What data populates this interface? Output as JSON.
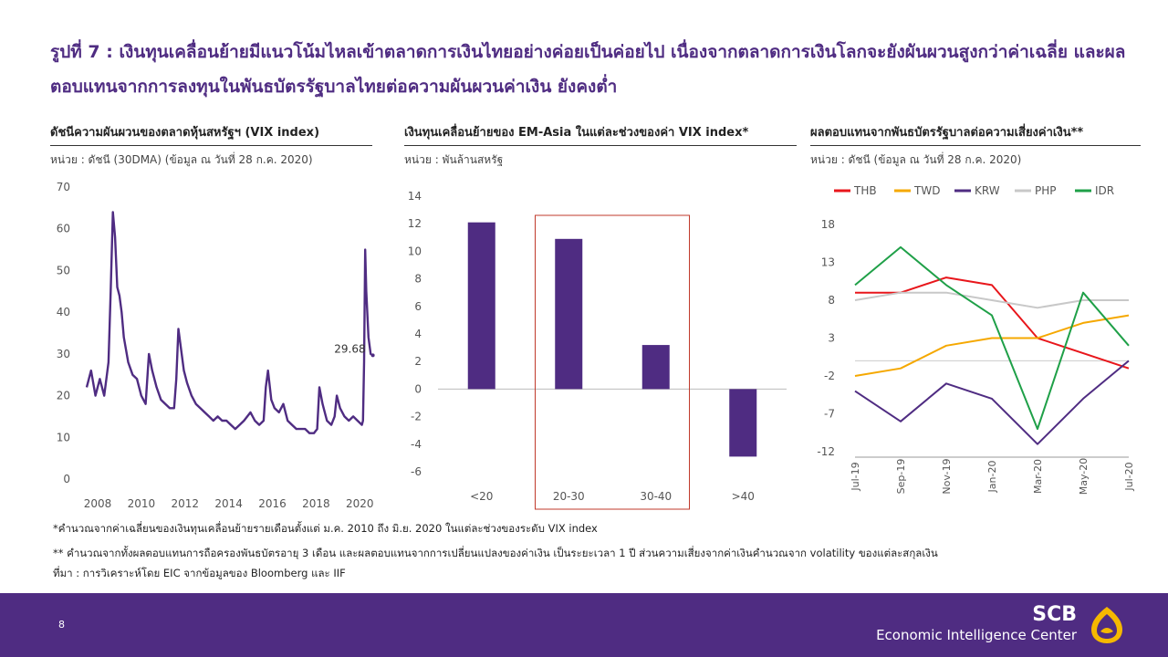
{
  "title": "รูปที่ 7 : เงินทุนเคลื่อนย้ายมีแนวโน้มไหลเข้าตลาดการเงินไทยอย่างค่อยเป็นค่อยไป เนื่องจากตลาดการเงินโลกจะยังผันผวนสูงกว่าค่าเฉลี่ย และผลตอบแทนจากการลงทุนในพันธบัตรรัฐบาลไทยต่อความผันผวนค่าเงิน ยังคงต่ำ",
  "panels": {
    "vix": {
      "title": "ดัชนีความผันผวนของตลาดหุ้นสหรัฐฯ (VIX index)",
      "unit": "หน่วย : ดัชนี (30DMA) (ข้อมูล ณ วันที่ 28 ก.ค. 2020)"
    },
    "flows": {
      "title": "เงินทุนเคลื่อนย้ายของ EM-Asia ในแต่ละช่วงของค่า VIX index*",
      "unit": "หน่วย : พันล้านสหรัฐ"
    },
    "risk": {
      "title": "ผลตอบแทนจากพันธบัตรรัฐบาลต่อความเสี่ยงค่าเงิน**",
      "unit": "หน่วย : ดัชนี (ข้อมูล ณ วันที่ 28 ก.ค. 2020)"
    }
  },
  "chart_data": [
    {
      "type": "line",
      "series": [
        {
          "color": "#4f2c82"
        }
      ],
      "x": [
        2007.5,
        2007.7,
        2007.9,
        2008.1,
        2008.3,
        2008.5,
        2008.6,
        2008.7,
        2008.8,
        2008.9,
        2009.0,
        2009.1,
        2009.2,
        2009.4,
        2009.6,
        2009.8,
        2010.0,
        2010.2,
        2010.35,
        2010.5,
        2010.7,
        2010.9,
        2011.1,
        2011.3,
        2011.5,
        2011.6,
        2011.7,
        2011.8,
        2011.95,
        2012.1,
        2012.3,
        2012.5,
        2012.7,
        2012.9,
        2013.1,
        2013.3,
        2013.5,
        2013.7,
        2013.9,
        2014.1,
        2014.3,
        2014.5,
        2014.7,
        2014.85,
        2015.0,
        2015.2,
        2015.4,
        2015.6,
        2015.7,
        2015.8,
        2015.95,
        2016.1,
        2016.3,
        2016.5,
        2016.7,
        2016.9,
        2017.1,
        2017.3,
        2017.5,
        2017.7,
        2017.9,
        2018.05,
        2018.15,
        2018.3,
        2018.5,
        2018.7,
        2018.85,
        2018.95,
        2019.1,
        2019.3,
        2019.5,
        2019.7,
        2019.9,
        2020.1,
        2020.15,
        2020.2,
        2020.25,
        2020.3,
        2020.4,
        2020.5,
        2020.6
      ],
      "y": [
        22,
        26,
        20,
        24,
        20,
        28,
        45,
        64,
        58,
        46,
        44,
        40,
        34,
        28,
        25,
        24,
        20,
        18,
        30,
        26,
        22,
        19,
        18,
        17,
        17,
        24,
        36,
        32,
        26,
        23,
        20,
        18,
        17,
        16,
        15,
        14,
        15,
        14,
        14,
        13,
        12,
        13,
        14,
        15,
        16,
        14,
        13,
        14,
        22,
        26,
        19,
        17,
        16,
        18,
        14,
        13,
        12,
        12,
        12,
        11,
        11,
        12,
        22,
        18,
        14,
        13,
        15,
        20,
        17,
        15,
        14,
        15,
        14,
        13,
        14,
        28,
        55,
        45,
        34,
        30,
        29.68
      ],
      "xlim": [
        2007.5,
        2020.7
      ],
      "ylim": [
        0,
        70
      ],
      "yticks": [
        "0",
        "10",
        "20",
        "30",
        "40",
        "50",
        "60",
        "70"
      ],
      "xticks": [
        "2008",
        "2010",
        "2012",
        "2014",
        "2016",
        "2018",
        "2020"
      ],
      "annotation": "29.68"
    },
    {
      "type": "bar",
      "categories": [
        "<20",
        "20-30",
        "30-40",
        ">40"
      ],
      "values": [
        12.1,
        10.9,
        3.2,
        -4.9
      ],
      "ylim": [
        -6,
        14
      ],
      "yticks": [
        "-6",
        "-4",
        "-2",
        "0",
        "2",
        "4",
        "6",
        "8",
        "10",
        "12",
        "14"
      ],
      "bar_color": "#4f2c82",
      "highlight_box_color": "#c0392b"
    },
    {
      "type": "line",
      "x": [
        "Jul-19",
        "Sep-19",
        "Nov-19",
        "Jan-20",
        "Mar-20",
        "May-20",
        "Jul-20"
      ],
      "ylim": [
        -12,
        18
      ],
      "yticks": [
        "18",
        "13",
        "8",
        "3",
        "-2",
        "-7",
        "-12"
      ],
      "series": [
        {
          "name": "THB",
          "color": "#e8161b",
          "values": [
            9,
            9,
            11,
            10,
            3,
            1,
            -1
          ]
        },
        {
          "name": "TWD",
          "color": "#f5a800",
          "values": [
            -2,
            -1,
            2,
            3,
            3,
            5,
            6
          ]
        },
        {
          "name": "KRW",
          "color": "#4f2c82",
          "values": [
            -4,
            -8,
            -3,
            -5,
            -11,
            -5,
            0
          ]
        },
        {
          "name": "PHP",
          "color": "#c8c8c8",
          "values": [
            8,
            9,
            9,
            8,
            7,
            8,
            8
          ]
        },
        {
          "name": "IDR",
          "color": "#1fa048",
          "values": [
            10,
            15,
            10,
            6,
            -9,
            9,
            2
          ]
        }
      ]
    }
  ],
  "notes": {
    "n1": "*คำนวณจากค่าเฉลี่ยนของเงินทุนเคลื่อนย้ายรายเดือนตั้งแต่ ม.ค. 2010 ถึง มิ.ย. 2020 ในแต่ละช่วงของระดับ VIX index",
    "n2": "** คำนวณจากทั้งผลตอบแทนการถือครองพันธบัตรอายุ 3 เดือน และผลตอบแทนจากการเปลี่ยนแปลงของค่าเงิน เป็นระยะเวลา 1 ปี ส่วนความเสี่ยงจากค่าเงินคำนวณจาก volatility ของแต่ละสกุลเงิน",
    "n3": "ที่มา : การวิเคราะห์โดย EIC จากข้อมูลของ Bloomberg และ IIF"
  },
  "footer": {
    "page": "8",
    "brand": "SCB",
    "center": "Economic Intelligence Center"
  },
  "colors": {
    "accent": "#4f2c82",
    "logo": "#f5b800"
  }
}
